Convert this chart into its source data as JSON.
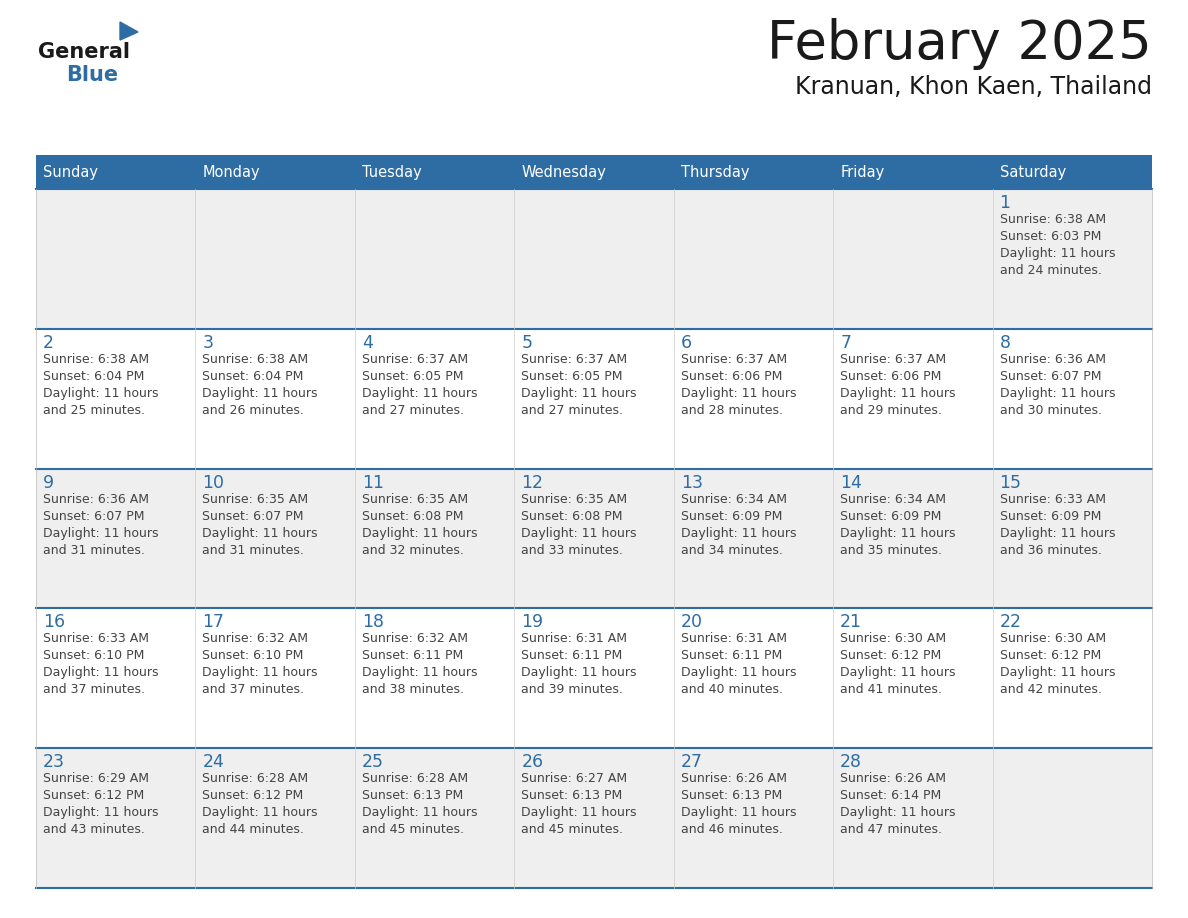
{
  "title": "February 2025",
  "subtitle": "Kranuan, Khon Kaen, Thailand",
  "header_bg": "#2E6DA4",
  "header_text": "#FFFFFF",
  "row_bg_light": "#EFEFEF",
  "row_bg_white": "#FFFFFF",
  "cell_border_color": "#2E6DA4",
  "day_number_color": "#2E6DA4",
  "detail_color": "#444444",
  "weekdays": [
    "Sunday",
    "Monday",
    "Tuesday",
    "Wednesday",
    "Thursday",
    "Friday",
    "Saturday"
  ],
  "logo_general_color": "#1a1a1a",
  "logo_blue_color": "#2E6DA4",
  "calendar_data": [
    [
      null,
      null,
      null,
      null,
      null,
      null,
      {
        "day": "1",
        "sunrise": "6:38 AM",
        "sunset": "6:03 PM",
        "daylight": "11 hours\nand 24 minutes."
      }
    ],
    [
      {
        "day": "2",
        "sunrise": "6:38 AM",
        "sunset": "6:04 PM",
        "daylight": "11 hours\nand 25 minutes."
      },
      {
        "day": "3",
        "sunrise": "6:38 AM",
        "sunset": "6:04 PM",
        "daylight": "11 hours\nand 26 minutes."
      },
      {
        "day": "4",
        "sunrise": "6:37 AM",
        "sunset": "6:05 PM",
        "daylight": "11 hours\nand 27 minutes."
      },
      {
        "day": "5",
        "sunrise": "6:37 AM",
        "sunset": "6:05 PM",
        "daylight": "11 hours\nand 27 minutes."
      },
      {
        "day": "6",
        "sunrise": "6:37 AM",
        "sunset": "6:06 PM",
        "daylight": "11 hours\nand 28 minutes."
      },
      {
        "day": "7",
        "sunrise": "6:37 AM",
        "sunset": "6:06 PM",
        "daylight": "11 hours\nand 29 minutes."
      },
      {
        "day": "8",
        "sunrise": "6:36 AM",
        "sunset": "6:07 PM",
        "daylight": "11 hours\nand 30 minutes."
      }
    ],
    [
      {
        "day": "9",
        "sunrise": "6:36 AM",
        "sunset": "6:07 PM",
        "daylight": "11 hours\nand 31 minutes."
      },
      {
        "day": "10",
        "sunrise": "6:35 AM",
        "sunset": "6:07 PM",
        "daylight": "11 hours\nand 31 minutes."
      },
      {
        "day": "11",
        "sunrise": "6:35 AM",
        "sunset": "6:08 PM",
        "daylight": "11 hours\nand 32 minutes."
      },
      {
        "day": "12",
        "sunrise": "6:35 AM",
        "sunset": "6:08 PM",
        "daylight": "11 hours\nand 33 minutes."
      },
      {
        "day": "13",
        "sunrise": "6:34 AM",
        "sunset": "6:09 PM",
        "daylight": "11 hours\nand 34 minutes."
      },
      {
        "day": "14",
        "sunrise": "6:34 AM",
        "sunset": "6:09 PM",
        "daylight": "11 hours\nand 35 minutes."
      },
      {
        "day": "15",
        "sunrise": "6:33 AM",
        "sunset": "6:09 PM",
        "daylight": "11 hours\nand 36 minutes."
      }
    ],
    [
      {
        "day": "16",
        "sunrise": "6:33 AM",
        "sunset": "6:10 PM",
        "daylight": "11 hours\nand 37 minutes."
      },
      {
        "day": "17",
        "sunrise": "6:32 AM",
        "sunset": "6:10 PM",
        "daylight": "11 hours\nand 37 minutes."
      },
      {
        "day": "18",
        "sunrise": "6:32 AM",
        "sunset": "6:11 PM",
        "daylight": "11 hours\nand 38 minutes."
      },
      {
        "day": "19",
        "sunrise": "6:31 AM",
        "sunset": "6:11 PM",
        "daylight": "11 hours\nand 39 minutes."
      },
      {
        "day": "20",
        "sunrise": "6:31 AM",
        "sunset": "6:11 PM",
        "daylight": "11 hours\nand 40 minutes."
      },
      {
        "day": "21",
        "sunrise": "6:30 AM",
        "sunset": "6:12 PM",
        "daylight": "11 hours\nand 41 minutes."
      },
      {
        "day": "22",
        "sunrise": "6:30 AM",
        "sunset": "6:12 PM",
        "daylight": "11 hours\nand 42 minutes."
      }
    ],
    [
      {
        "day": "23",
        "sunrise": "6:29 AM",
        "sunset": "6:12 PM",
        "daylight": "11 hours\nand 43 minutes."
      },
      {
        "day": "24",
        "sunrise": "6:28 AM",
        "sunset": "6:12 PM",
        "daylight": "11 hours\nand 44 minutes."
      },
      {
        "day": "25",
        "sunrise": "6:28 AM",
        "sunset": "6:13 PM",
        "daylight": "11 hours\nand 45 minutes."
      },
      {
        "day": "26",
        "sunrise": "6:27 AM",
        "sunset": "6:13 PM",
        "daylight": "11 hours\nand 45 minutes."
      },
      {
        "day": "27",
        "sunrise": "6:26 AM",
        "sunset": "6:13 PM",
        "daylight": "11 hours\nand 46 minutes."
      },
      {
        "day": "28",
        "sunrise": "6:26 AM",
        "sunset": "6:14 PM",
        "daylight": "11 hours\nand 47 minutes."
      },
      null
    ]
  ]
}
